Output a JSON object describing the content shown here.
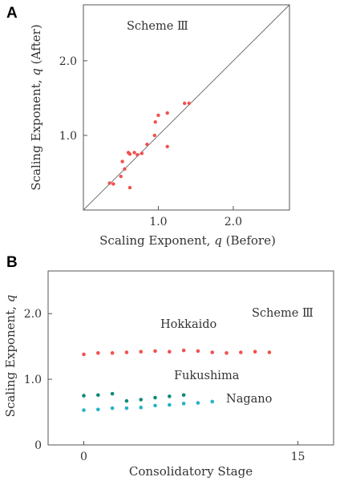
{
  "colors": {
    "hokkaido": "#f0524f",
    "fukushima": "#0f8a78",
    "nagano": "#24b3c6",
    "panel_a_points": "#f0524f",
    "axes": "#555555",
    "text": "#333333"
  },
  "chart_data": [
    {
      "panel": "A",
      "type": "scatter",
      "annotation": "Scheme Ⅲ",
      "xlabel": "Scaling Exponent, q (Before)",
      "ylabel": "Scaling Exponent, q (After)",
      "xlim": [
        0.0,
        2.75
      ],
      "ylim": [
        0.0,
        2.75
      ],
      "xticks": [
        1.0,
        2.0
      ],
      "xtick_labels": [
        "1.0",
        "2.0"
      ],
      "yticks": [
        1.0,
        2.0
      ],
      "ytick_labels": [
        "1.0",
        "2.0"
      ],
      "grid": false,
      "reference_line": "y = x",
      "series": [
        {
          "color": "#f0524f",
          "points": [
            {
              "x": 0.35,
              "y": 0.36
            },
            {
              "x": 0.4,
              "y": 0.35
            },
            {
              "x": 0.5,
              "y": 0.45
            },
            {
              "x": 0.52,
              "y": 0.65
            },
            {
              "x": 0.55,
              "y": 0.55
            },
            {
              "x": 0.6,
              "y": 0.77
            },
            {
              "x": 0.62,
              "y": 0.75
            },
            {
              "x": 0.62,
              "y": 0.3
            },
            {
              "x": 0.68,
              "y": 0.77
            },
            {
              "x": 0.72,
              "y": 0.74
            },
            {
              "x": 0.78,
              "y": 0.76
            },
            {
              "x": 0.85,
              "y": 0.88
            },
            {
              "x": 0.95,
              "y": 1.0
            },
            {
              "x": 0.96,
              "y": 1.18
            },
            {
              "x": 1.0,
              "y": 1.27
            },
            {
              "x": 1.12,
              "y": 1.3
            },
            {
              "x": 1.12,
              "y": 0.85
            },
            {
              "x": 1.35,
              "y": 1.43
            },
            {
              "x": 1.41,
              "y": 1.43
            }
          ]
        }
      ]
    },
    {
      "panel": "B",
      "type": "scatter",
      "annotation": "Scheme Ⅲ",
      "xlabel": "Consolidatory Stage",
      "ylabel": "Scaling Exponent, q",
      "xlim": [
        -2.5,
        17.5
      ],
      "ylim": [
        0.0,
        2.65
      ],
      "xticks": [
        0,
        15
      ],
      "xtick_labels": [
        "0",
        "15"
      ],
      "yticks": [
        0.0,
        1.0,
        2.0
      ],
      "ytick_labels": [
        "0",
        "1.0",
        "2.0"
      ],
      "grid": false,
      "series": [
        {
          "name": "Hokkaido",
          "color": "#f0524f",
          "x": [
            0,
            1,
            2,
            3,
            4,
            5,
            6,
            7,
            8,
            9,
            10,
            11,
            12,
            13
          ],
          "y": [
            1.38,
            1.4,
            1.4,
            1.41,
            1.42,
            1.43,
            1.42,
            1.44,
            1.43,
            1.41,
            1.4,
            1.41,
            1.42,
            1.41
          ]
        },
        {
          "name": "Fukushima",
          "color": "#0f8a78",
          "x": [
            0,
            1,
            2,
            3,
            4,
            5,
            6,
            7
          ],
          "y": [
            0.75,
            0.76,
            0.78,
            0.67,
            0.69,
            0.72,
            0.74,
            0.76
          ]
        },
        {
          "name": "Nagano",
          "color": "#24b3c6",
          "x": [
            0,
            1,
            2,
            3,
            4,
            5,
            6,
            7,
            8,
            9
          ],
          "y": [
            0.53,
            0.54,
            0.56,
            0.56,
            0.57,
            0.6,
            0.61,
            0.63,
            0.64,
            0.66
          ]
        }
      ]
    }
  ]
}
